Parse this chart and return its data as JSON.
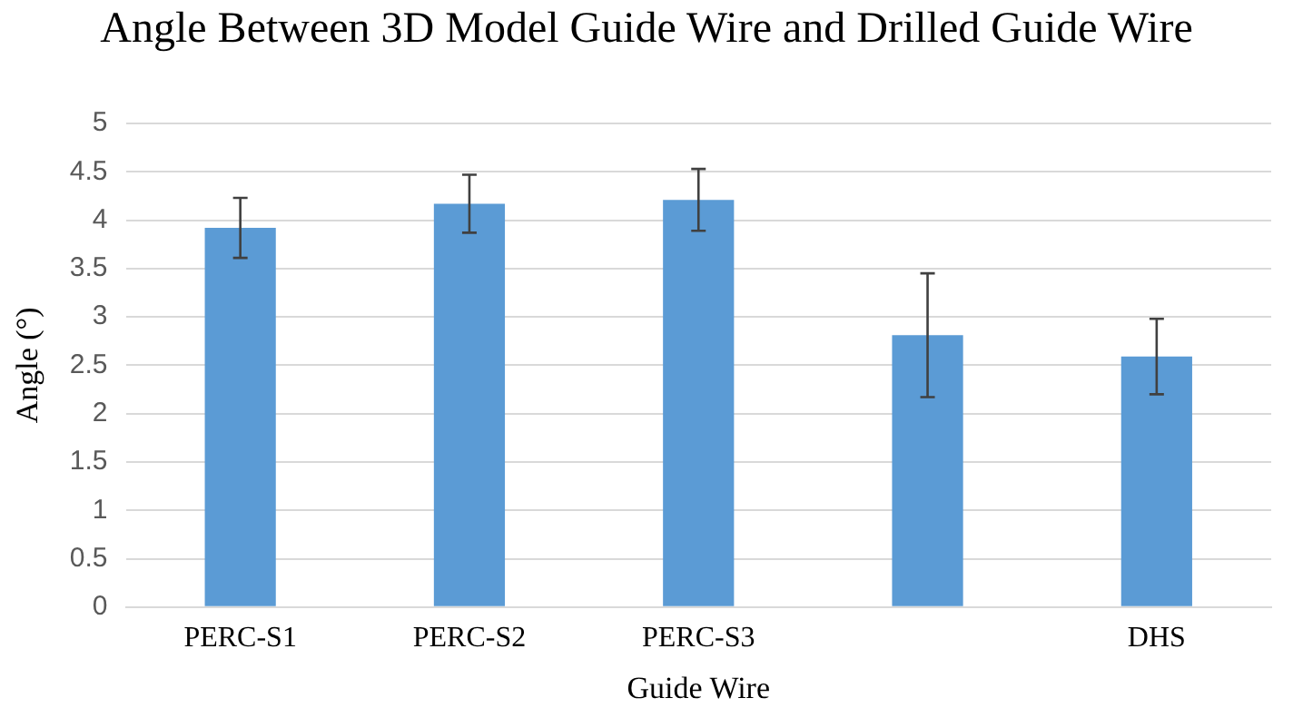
{
  "chart_data": {
    "type": "bar",
    "title": "Angle Between 3D Model Guide Wire and Drilled Guide Wire",
    "xlabel": "Guide Wire",
    "ylabel": "Angle (°)",
    "categories": [
      "PERC-S1",
      "PERC-S2",
      "PERC-S3",
      null,
      "DHS"
    ],
    "values": [
      3.92,
      4.17,
      4.21,
      2.81,
      2.59
    ],
    "errors": [
      0.31,
      0.3,
      0.32,
      0.64,
      0.39
    ],
    "color": "#5b9bd5",
    "ylim": [
      0,
      5
    ],
    "yticks": [
      0,
      0.5,
      1,
      1.5,
      2,
      2.5,
      3,
      3.5,
      4,
      4.5,
      5
    ],
    "grid": "y",
    "legend": false
  }
}
